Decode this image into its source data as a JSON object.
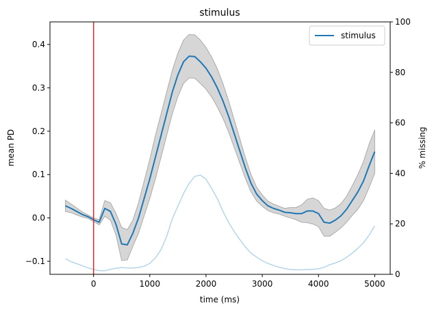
{
  "chart_data": {
    "type": "line",
    "title": "stimulus",
    "xlabel": "time (ms)",
    "ylabel": "mean PD",
    "y2label": "% missing",
    "x": [
      -500,
      -400,
      -300,
      -200,
      -100,
      0,
      100,
      200,
      300,
      400,
      500,
      600,
      700,
      800,
      900,
      1000,
      1100,
      1200,
      1300,
      1400,
      1500,
      1600,
      1700,
      1800,
      1900,
      2000,
      2100,
      2200,
      2300,
      2400,
      2500,
      2600,
      2700,
      2800,
      2900,
      3000,
      3100,
      3200,
      3300,
      3400,
      3500,
      3600,
      3700,
      3800,
      3900,
      4000,
      4100,
      4200,
      4300,
      4400,
      4500,
      4600,
      4700,
      4800,
      4900,
      5000
    ],
    "series": [
      {
        "name": "stimulus",
        "color": "#1f77b4",
        "band_color": "#d6d6d6",
        "values": [
          0.028,
          0.022,
          0.015,
          0.008,
          0.003,
          -0.004,
          -0.01,
          0.022,
          0.015,
          -0.015,
          -0.06,
          -0.062,
          -0.035,
          0.0,
          0.045,
          0.09,
          0.14,
          0.19,
          0.24,
          0.29,
          0.33,
          0.36,
          0.373,
          0.372,
          0.36,
          0.345,
          0.325,
          0.3,
          0.27,
          0.235,
          0.195,
          0.155,
          0.115,
          0.08,
          0.055,
          0.04,
          0.028,
          0.022,
          0.018,
          0.013,
          0.012,
          0.01,
          0.01,
          0.016,
          0.016,
          0.01,
          -0.01,
          -0.012,
          -0.005,
          0.005,
          0.02,
          0.04,
          0.06,
          0.085,
          0.12,
          0.153
        ],
        "lower": [
          0.015,
          0.012,
          0.007,
          0.002,
          -0.001,
          -0.008,
          -0.016,
          0.004,
          -0.005,
          -0.04,
          -0.098,
          -0.097,
          -0.065,
          -0.035,
          0.005,
          0.045,
          0.09,
          0.14,
          0.19,
          0.24,
          0.28,
          0.31,
          0.323,
          0.322,
          0.31,
          0.297,
          0.279,
          0.256,
          0.23,
          0.199,
          0.163,
          0.127,
          0.091,
          0.06,
          0.039,
          0.027,
          0.017,
          0.012,
          0.009,
          0.004,
          0.0,
          -0.004,
          -0.01,
          -0.011,
          -0.014,
          -0.02,
          -0.042,
          -0.042,
          -0.033,
          -0.023,
          -0.01,
          0.006,
          0.02,
          0.04,
          0.07,
          0.103
        ],
        "upper": [
          0.041,
          0.032,
          0.023,
          0.014,
          0.007,
          0.0,
          -0.004,
          0.04,
          0.035,
          0.01,
          -0.022,
          -0.027,
          -0.005,
          0.035,
          0.085,
          0.135,
          0.19,
          0.24,
          0.29,
          0.34,
          0.38,
          0.41,
          0.423,
          0.422,
          0.41,
          0.393,
          0.371,
          0.344,
          0.31,
          0.271,
          0.227,
          0.183,
          0.139,
          0.1,
          0.071,
          0.053,
          0.039,
          0.032,
          0.027,
          0.022,
          0.024,
          0.024,
          0.03,
          0.043,
          0.046,
          0.04,
          0.022,
          0.018,
          0.023,
          0.033,
          0.05,
          0.074,
          0.1,
          0.13,
          0.17,
          0.203
        ]
      },
      {
        "color": "#b4d5ea",
        "axis": "y2",
        "values": [
          6.2,
          5,
          4.2,
          3.4,
          2.6,
          1.9,
          1.5,
          1.4,
          2,
          2.4,
          2.7,
          2.5,
          2.5,
          2.7,
          3.2,
          4.3,
          6.5,
          9.8,
          15,
          22,
          27,
          32,
          36,
          38.8,
          39.3,
          37.7,
          34,
          30,
          25,
          20.6,
          17,
          13.8,
          10.8,
          8.4,
          6.8,
          5.4,
          4.3,
          3.5,
          2.8,
          2.3,
          1.9,
          1.8,
          1.8,
          1.9,
          2,
          2.2,
          2.8,
          3.8,
          4.5,
          5.4,
          6.7,
          8.4,
          10.3,
          12.5,
          15.5,
          19.2
        ]
      }
    ],
    "vlines": [
      {
        "x": 0,
        "color": "#d62728"
      }
    ],
    "xlim": [
      -775,
      5275
    ],
    "xticks": [
      0,
      1000,
      2000,
      3000,
      4000,
      5000
    ],
    "ylim": [
      -0.13,
      0.452
    ],
    "yticks": [
      {
        "value": -0.1,
        "label": "−0.1"
      },
      {
        "value": 0,
        "label": "0.0"
      },
      0.1,
      0.2,
      0.3,
      0.4
    ],
    "y2lim": [
      0,
      100
    ],
    "y2ticks": [
      0,
      20,
      40,
      60,
      80,
      100
    ],
    "legend": "upper right"
  }
}
